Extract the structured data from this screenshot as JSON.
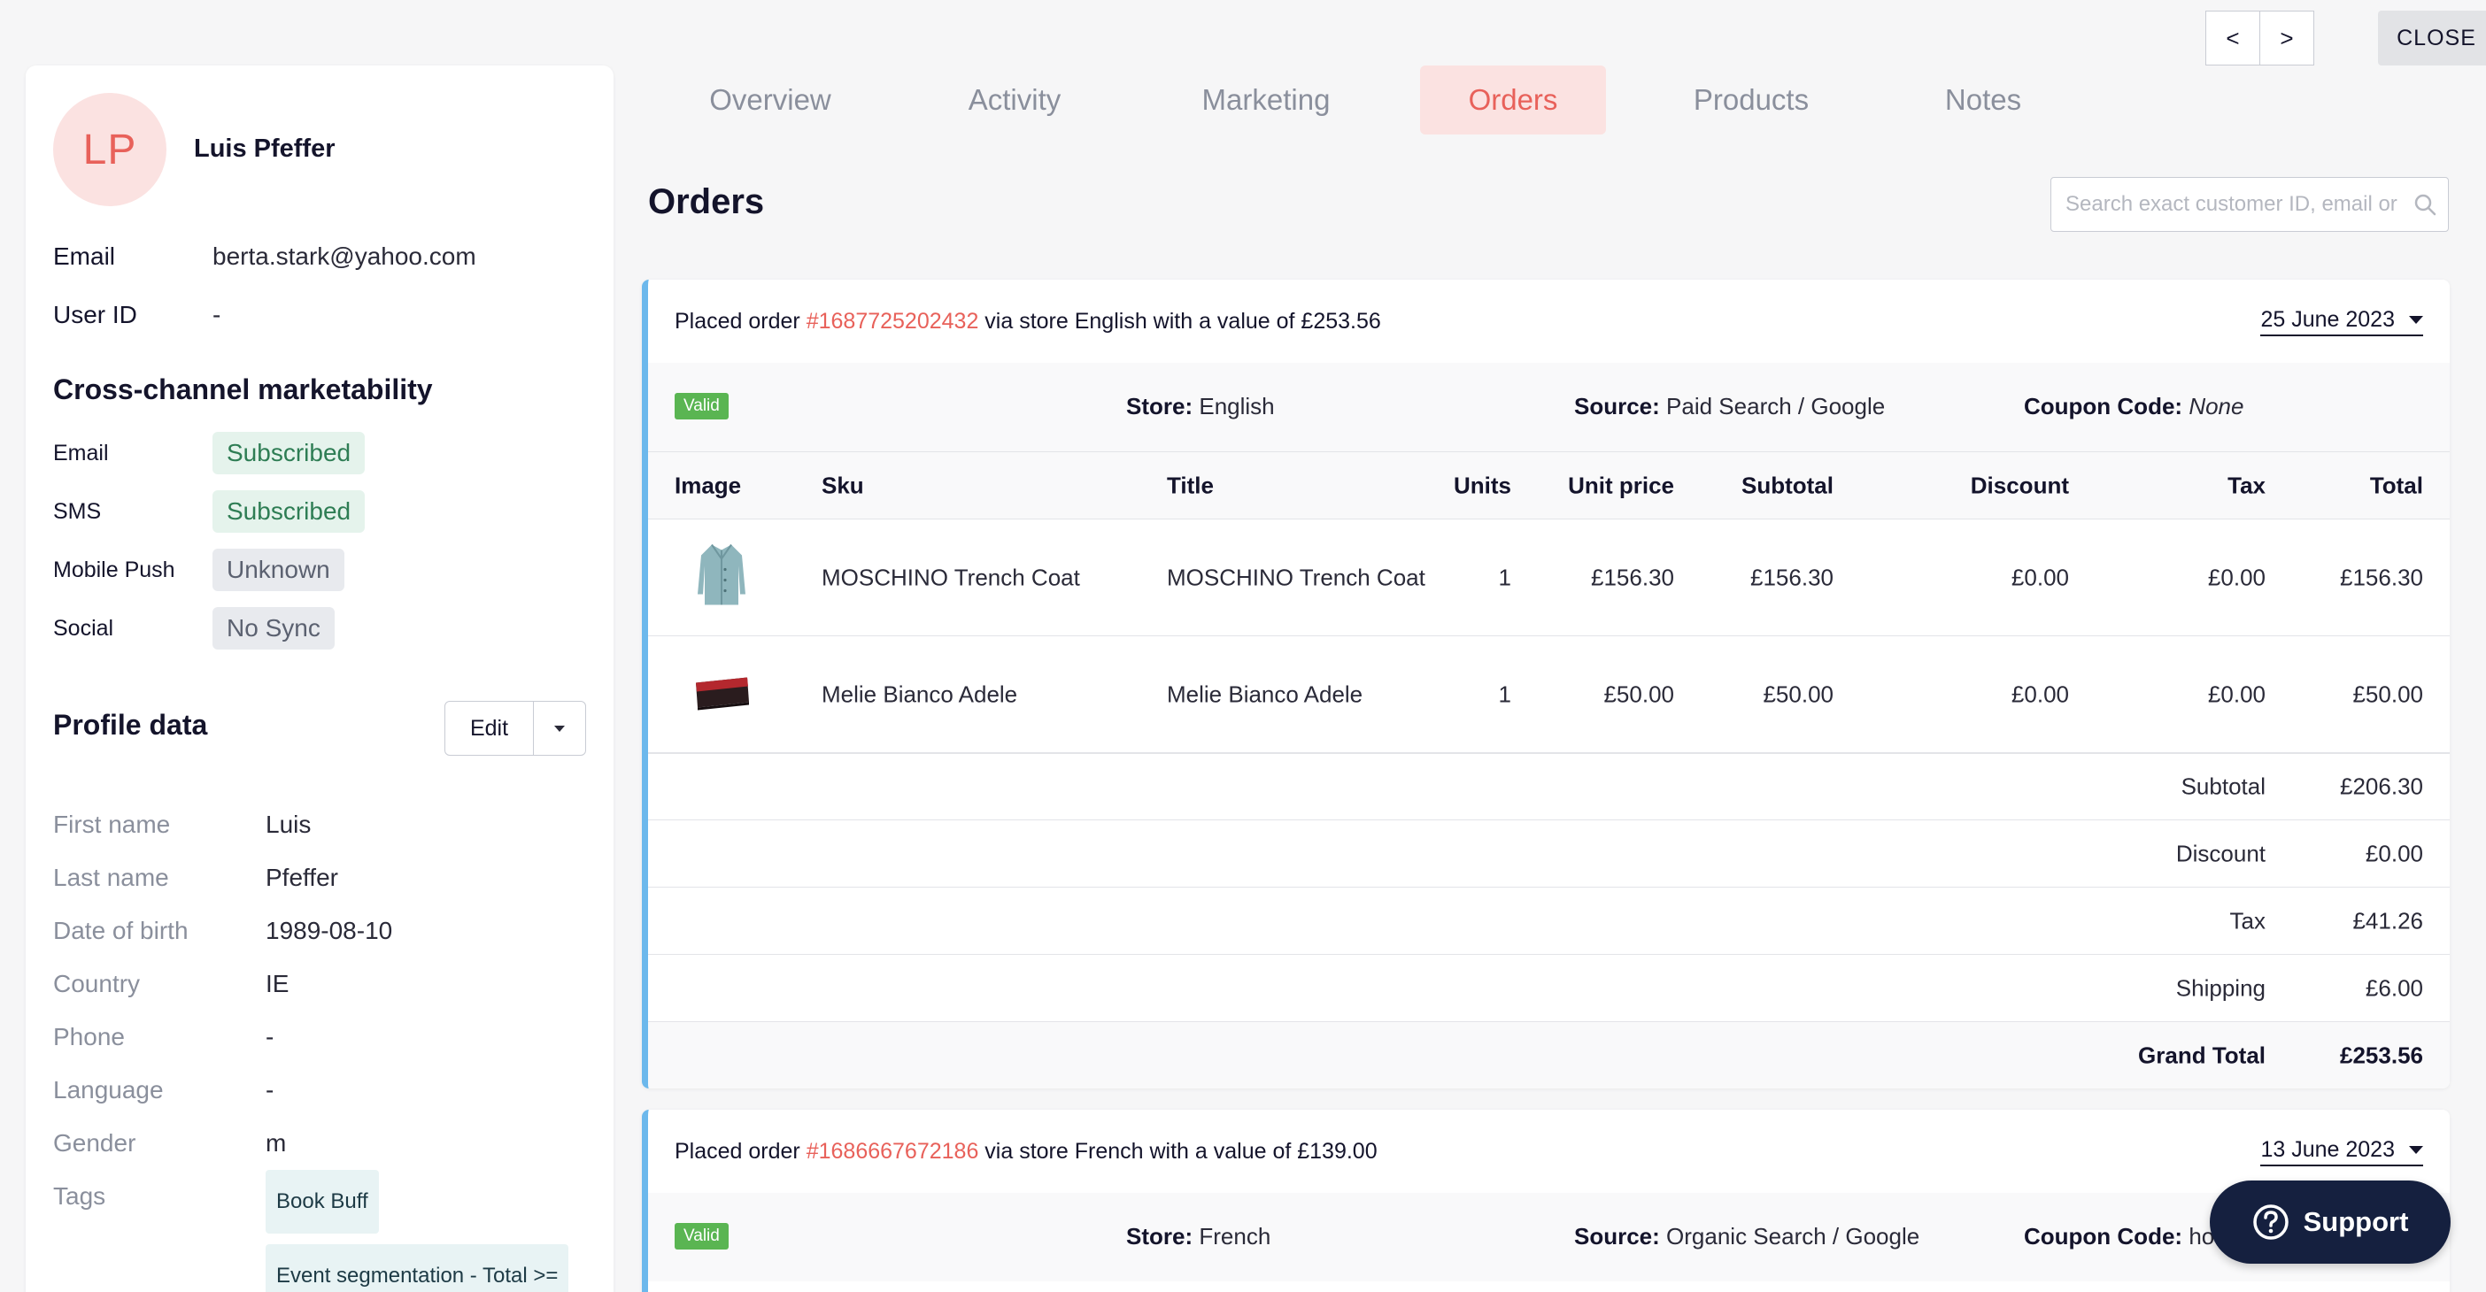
{
  "profile": {
    "initials": "LP",
    "name": "Luis Pfeffer",
    "email_label": "Email",
    "email": "berta.stark@yahoo.com",
    "user_id_label": "User ID",
    "user_id": "-"
  },
  "marketability": {
    "title": "Cross-channel marketability",
    "rows": [
      {
        "label": "Email",
        "status": "Subscribed"
      },
      {
        "label": "SMS",
        "status": "Subscribed"
      },
      {
        "label": "Mobile Push",
        "status": "Unknown"
      },
      {
        "label": "Social",
        "status": "No Sync"
      }
    ]
  },
  "profile_data": {
    "title": "Profile data",
    "edit_label": "Edit",
    "rows": [
      {
        "label": "First name",
        "value": "Luis"
      },
      {
        "label": "Last name",
        "value": "Pfeffer"
      },
      {
        "label": "Date of birth",
        "value": "1989-08-10"
      },
      {
        "label": "Country",
        "value": "IE"
      },
      {
        "label": "Phone",
        "value": "-"
      },
      {
        "label": "Language",
        "value": "-"
      },
      {
        "label": "Gender",
        "value": "m"
      }
    ],
    "tags_label": "Tags",
    "tags": [
      "Book Buff",
      "Event segmentation - Total >="
    ]
  },
  "nav": {
    "prev": "<",
    "next": ">",
    "close": "CLOSE"
  },
  "tabs": [
    "Overview",
    "Activity",
    "Marketing",
    "Orders",
    "Products",
    "Notes"
  ],
  "active_tab": "Orders",
  "orders": {
    "title": "Orders",
    "search_placeholder": "Search exact customer ID, email or",
    "columns": [
      "Image",
      "Sku",
      "Title",
      "Units",
      "Unit price",
      "Subtotal",
      "Discount",
      "Tax",
      "Total"
    ],
    "list": [
      {
        "prefix": "Placed order ",
        "number": "#1687725202432",
        "suffix": " via store English with a value of £253.56",
        "date": "25 June 2023",
        "status": "Valid",
        "store_label": "Store:",
        "store": "English",
        "source_label": "Source:",
        "source": "Paid Search / Google",
        "coupon_label": "Coupon Code:",
        "coupon": "None",
        "items": [
          {
            "image": "coat-image",
            "sku": "MOSCHINO Trench Coat",
            "title": "MOSCHINO Trench Coat",
            "units": "1",
            "unit_price": "£156.30",
            "subtotal": "£156.30",
            "discount": "£0.00",
            "tax": "£0.00",
            "total": "£156.30"
          },
          {
            "image": "bag-image",
            "sku": "Melie Bianco Adele",
            "title": "Melie Bianco Adele",
            "units": "1",
            "unit_price": "£50.00",
            "subtotal": "£50.00",
            "discount": "£0.00",
            "tax": "£0.00",
            "total": "£50.00"
          }
        ],
        "summary": [
          {
            "label": "Subtotal",
            "value": "£206.30"
          },
          {
            "label": "Discount",
            "value": "£0.00"
          },
          {
            "label": "Tax",
            "value": "£41.26"
          },
          {
            "label": "Shipping",
            "value": "£6.00"
          },
          {
            "label": "Grand Total",
            "value": "£253.56"
          }
        ]
      },
      {
        "prefix": "Placed order ",
        "number": "#1686667672186",
        "suffix": " via store French with a value of £139.00",
        "date": "13 June 2023",
        "status": "Valid",
        "store_label": "Store:",
        "store": "French",
        "source_label": "Source:",
        "source": "Organic Search / Google",
        "coupon_label": "Coupon Code:",
        "coupon": "hol"
      }
    ]
  },
  "support": {
    "label": "Support"
  }
}
